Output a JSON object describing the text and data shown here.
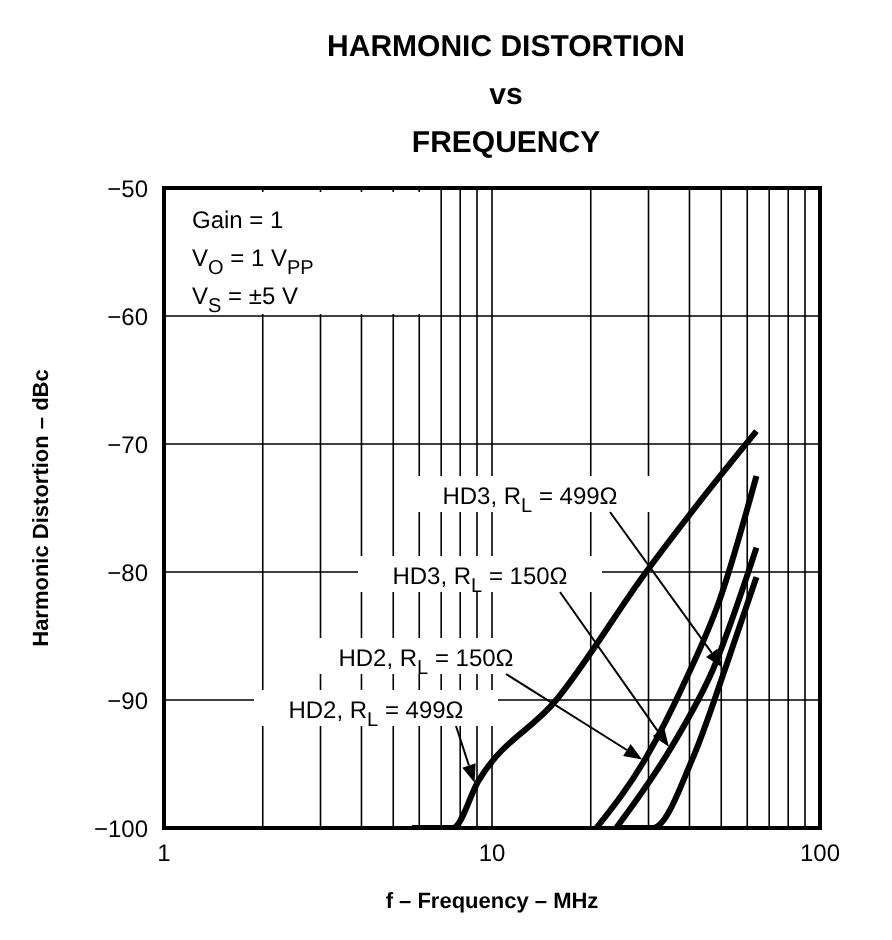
{
  "chart_data": {
    "type": "line",
    "title": "HARMONIC DISTORTION\nvs\nFREQUENCY",
    "xlabel": "f – Frequency – MHz",
    "ylabel": "Harmonic Distortion – dBc",
    "annotations": [
      "Gain = 1",
      "V$_{O}$ = 1 V$_{PP}$",
      "V$_{S}$ = ±5 V"
    ],
    "log": "x",
    "grid": true,
    "legend": false,
    "marker": "none",
    "line_style": "solid",
    "xlim": [
      1,
      100
    ],
    "xticks": [
      1,
      {
        "value": 2,
        "label": null
      },
      {
        "value": 3,
        "label": null
      },
      {
        "value": 4,
        "label": null
      },
      {
        "value": 5,
        "label": null
      },
      {
        "value": 6,
        "label": null
      },
      {
        "value": 7,
        "label": null
      },
      {
        "value": 8,
        "label": null
      },
      {
        "value": 9,
        "label": null
      },
      10,
      {
        "value": 20,
        "label": null
      },
      {
        "value": 30,
        "label": null
      },
      {
        "value": 40,
        "label": null
      },
      {
        "value": 50,
        "label": null
      },
      {
        "value": 60,
        "label": null
      },
      {
        "value": 70,
        "label": null
      },
      {
        "value": 80,
        "label": null
      },
      {
        "value": 90,
        "label": null
      },
      100
    ],
    "ylim": [
      -100,
      -50
    ],
    "yticks": [
      -100,
      -90,
      -80,
      -70,
      -60,
      -50
    ],
    "series": [
      {
        "name": "HD3, R$_{L}$ = 499Ω",
        "color": "#000000",
        "x": [
          24.5,
          30.9,
          41,
          51.8,
          64
        ],
        "values": [
          -100,
          -100,
          -94.5,
          -87.3,
          -80.4
        ]
      },
      {
        "name": "HD3, R$_{L}$ = 150Ω",
        "color": "#000000",
        "x": [
          23.9,
          35.6,
          47.2,
          64
        ],
        "values": [
          -100,
          -93.5,
          -87.6,
          -78.1
        ]
      },
      {
        "name": "HD2, R$_{L}$ = 150Ω",
        "color": "#000000",
        "x": [
          20.8,
          29.5,
          39,
          49.4,
          64
        ],
        "values": [
          -100,
          -94.5,
          -88.4,
          -82.2,
          -72.5
        ]
      },
      {
        "name": "HD2, R$_{L}$ = 499Ω",
        "color": "#000000",
        "x": [
          5.7,
          7.6,
          9.1,
          15.7,
          29.5,
          43,
          64
        ],
        "values": [
          -100,
          -100,
          -96.3,
          -90,
          -80,
          -74.5,
          -69
        ]
      }
    ]
  }
}
